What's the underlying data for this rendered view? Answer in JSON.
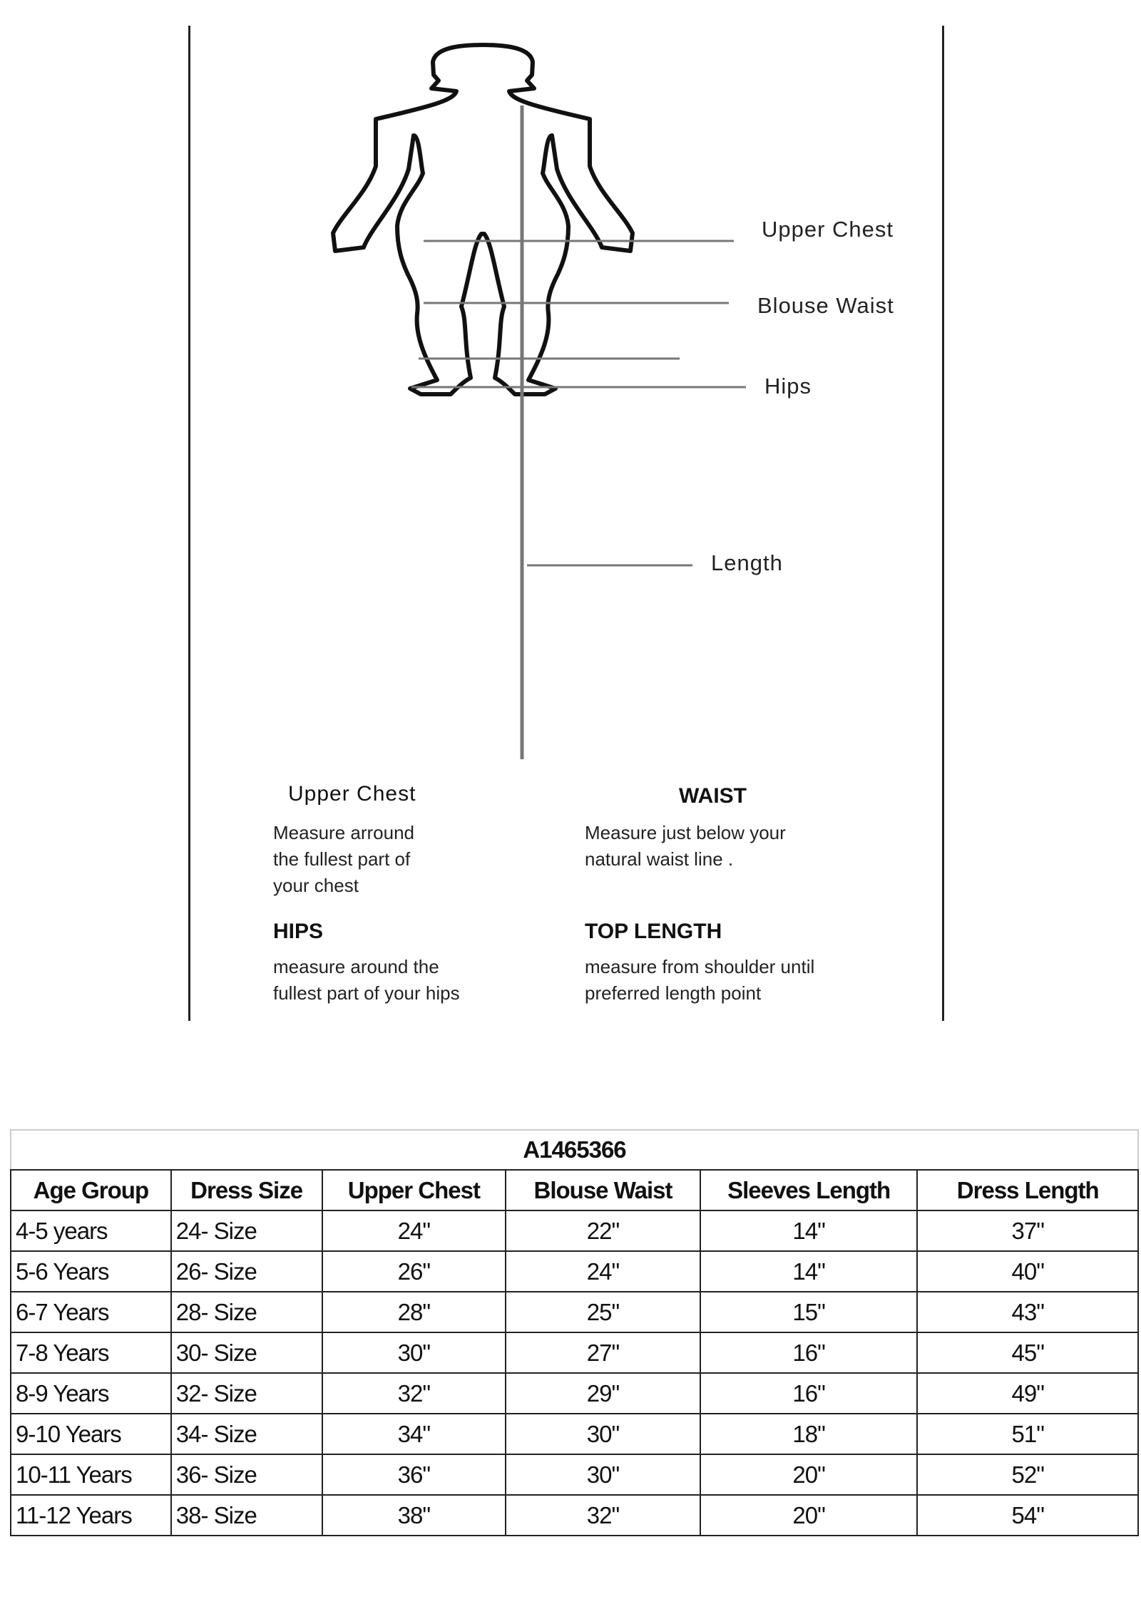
{
  "diagram": {
    "labels": {
      "upper_chest": "Upper Chest",
      "blouse_waist": "Blouse Waist",
      "hips": "Hips",
      "length": "Length"
    },
    "instructions": [
      {
        "heading": "Upper Chest",
        "text": "Measure arround\nthe fullest part of\nyour chest"
      },
      {
        "heading": "WAIST",
        "text": "Measure just below your\nnatural waist line ."
      },
      {
        "heading": "HIPS",
        "text": "measure around the\nfullest part of your hips"
      },
      {
        "heading": "TOP LENGTH",
        "text": "measure from shoulder until\npreferred length point"
      }
    ]
  },
  "table": {
    "title": "A1465366",
    "headers": [
      "Age Group",
      "Dress Size",
      "Upper Chest",
      "Blouse Waist",
      "Sleeves Length",
      "Dress Length"
    ],
    "rows": [
      [
        "4-5 years",
        "24- Size",
        "24\"",
        "22\"",
        "14\"",
        "37\""
      ],
      [
        "5-6 Years",
        "26- Size",
        "26\"",
        "24\"",
        "14\"",
        "40\""
      ],
      [
        "6-7 Years",
        "28- Size",
        "28\"",
        "25\"",
        "15\"",
        "43\""
      ],
      [
        "7-8 Years",
        "30- Size",
        "30\"",
        "27\"",
        "16\"",
        "45\""
      ],
      [
        "8-9 Years",
        "32- Size",
        "32\"",
        "29\"",
        "16\"",
        "49\""
      ],
      [
        "9-10 Years",
        "34- Size",
        "34\"",
        "30\"",
        "18\"",
        "51\""
      ],
      [
        "10-11 Years",
        "36- Size",
        "36\"",
        "30\"",
        "20\"",
        "52\""
      ],
      [
        "11-12 Years",
        "38- Size",
        "38\"",
        "32\"",
        "20\"",
        "54\""
      ]
    ]
  }
}
